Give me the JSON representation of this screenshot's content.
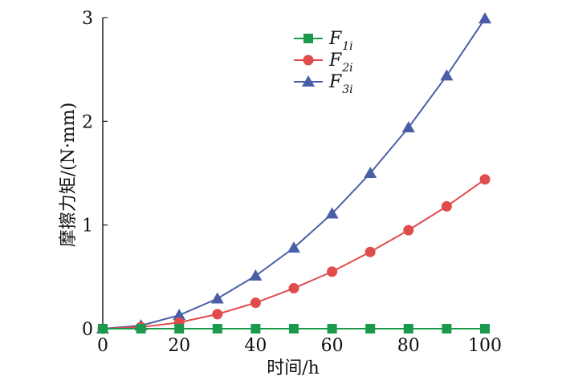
{
  "chart_data": {
    "type": "line",
    "xlabel": "时间/h",
    "ylabel": "摩擦力矩/(N·mm)",
    "xlim": [
      0,
      100
    ],
    "ylim": [
      0,
      3
    ],
    "xticks": [
      "0",
      "20",
      "40",
      "60",
      "80",
      "100"
    ],
    "yticks": [
      "0",
      "1",
      "2",
      "3"
    ],
    "x": [
      0,
      10,
      20,
      30,
      40,
      50,
      60,
      70,
      80,
      90,
      100
    ],
    "series": [
      {
        "name": "F1i",
        "legend_main": "F",
        "legend_sub": "1i",
        "color": "#1a9a4a",
        "marker": "square",
        "values": [
          0,
          0,
          0,
          0,
          0,
          0,
          0,
          0,
          0,
          0,
          0
        ]
      },
      {
        "name": "F2i",
        "legend_main": "F",
        "legend_sub": "2i",
        "color": "#e04b4b",
        "marker": "circle",
        "values": [
          0,
          0.015,
          0.06,
          0.14,
          0.25,
          0.39,
          0.55,
          0.74,
          0.95,
          1.18,
          1.44
        ]
      },
      {
        "name": "F3i",
        "legend_main": "F",
        "legend_sub": "3i",
        "color": "#4a5ea8",
        "marker": "triangle",
        "values": [
          0,
          0.03,
          0.13,
          0.29,
          0.51,
          0.78,
          1.11,
          1.5,
          1.94,
          2.44,
          2.99
        ]
      }
    ],
    "legend_position": "top-center",
    "grid": false
  }
}
